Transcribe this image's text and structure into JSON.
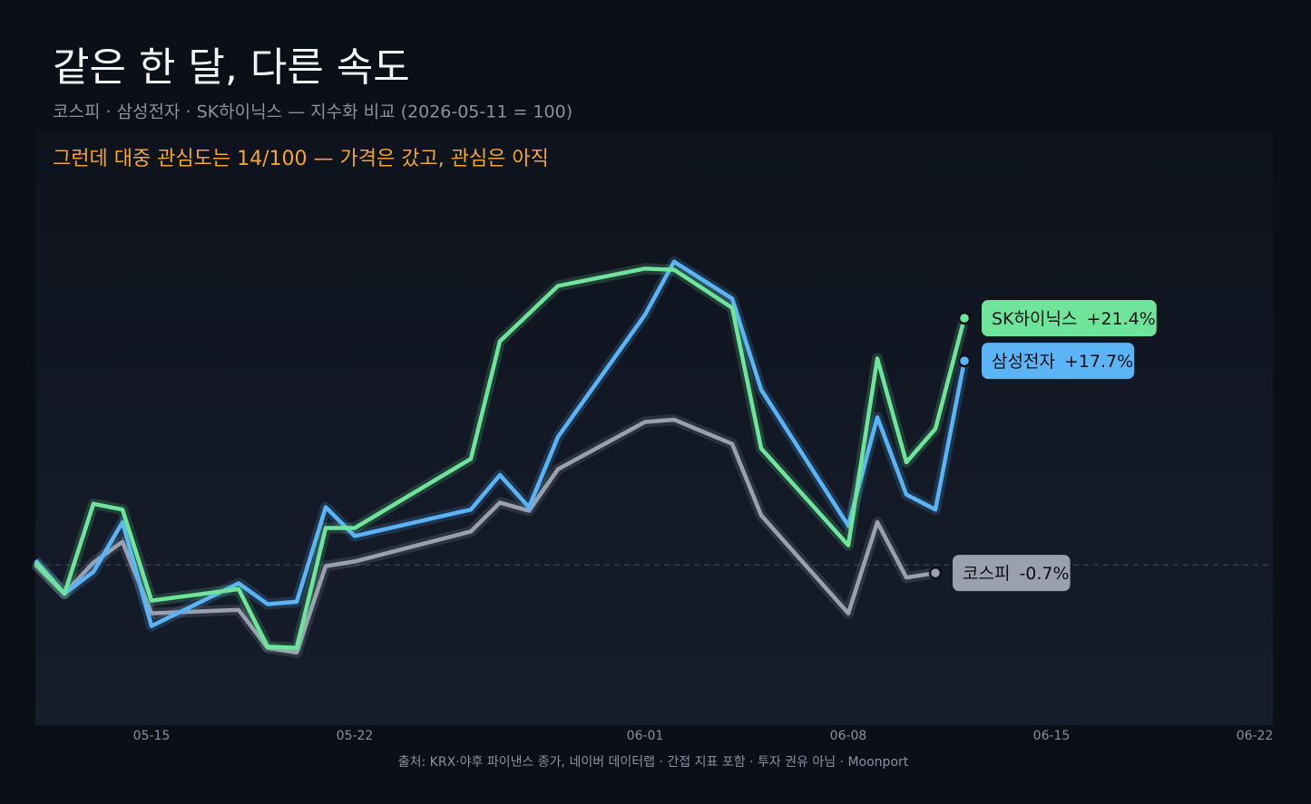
{
  "chart_data": {
    "type": "line",
    "title": "같은 한 달, 다른 속도",
    "subtitle": "코스피 · 삼성전자 · SK하이닉스 — 지수화 비교 (2026-05-11 = 100)",
    "annotation": "그런데 대중 관심도는 14/100 — 가격은 갔고, 관심은 아직",
    "source": "출처: KRX·야후 파이낸스 종가, 네이버 데이터랩 · 간접 지표 포함 · 투자 권유 아님 · Moonport",
    "x": [
      "05-11",
      "05-12",
      "05-13",
      "05-14",
      "05-15",
      "05-18",
      "05-19",
      "05-20",
      "05-21",
      "05-22",
      "05-26",
      "05-27",
      "05-28",
      "05-29",
      "06-01",
      "06-02",
      "06-04",
      "06-05",
      "06-08",
      "06-09",
      "06-10",
      "06-11",
      "06-12"
    ],
    "xlim": [
      "05-11",
      "06-22"
    ],
    "xticks": [
      "05-15",
      "05-22",
      "06-01",
      "06-08",
      "06-15",
      "06-22"
    ],
    "ylim": [
      86.1,
      137.6
    ],
    "baseline": 100,
    "series": [
      {
        "name": "코스피",
        "color": "#9aa0ad",
        "values": [
          100.0,
          97.5,
          100.2,
          102.0,
          95.8,
          96.1,
          92.8,
          92.4,
          99.9,
          100.3,
          102.9,
          105.4,
          104.7,
          108.3,
          112.4,
          112.6,
          110.5,
          104.3,
          95.8,
          103.7,
          98.9,
          99.3,
          null
        ],
        "end_label": {
          "value": -0.7,
          "label": "-0.7%"
        }
      },
      {
        "name": "삼성전자",
        "color": "#5ab4f5",
        "values": [
          100.4,
          97.5,
          99.4,
          103.7,
          94.7,
          98.4,
          96.6,
          96.8,
          105.0,
          102.5,
          104.8,
          107.8,
          105.0,
          111.1,
          121.7,
          126.3,
          123.1,
          115.2,
          103.4,
          112.8,
          106.1,
          104.8,
          117.7
        ],
        "end_label": {
          "value": 17.7,
          "label": "+17.7%"
        }
      },
      {
        "name": "SK하이닉스",
        "color": "#6ee59a",
        "values": [
          100.2,
          97.5,
          105.3,
          104.8,
          96.9,
          97.9,
          92.9,
          92.8,
          103.2,
          103.2,
          109.2,
          119.4,
          121.8,
          124.2,
          125.7,
          125.6,
          122.3,
          110.1,
          101.7,
          117.9,
          108.9,
          111.8,
          121.4
        ],
        "end_label": {
          "value": 21.4,
          "label": "+21.4%"
        }
      }
    ]
  }
}
